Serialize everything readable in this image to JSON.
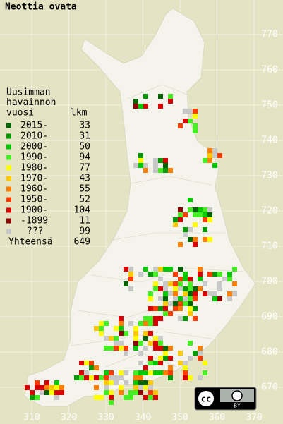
{
  "title": "Neottia ovata",
  "legend": {
    "heading": [
      "Uusimman",
      "havainnon",
      "vuosi"
    ],
    "count_heading": "lkm",
    "rows": [
      {
        "label": "2015-",
        "count": 33,
        "color": "#006400"
      },
      {
        "label": "2010-",
        "count": 31,
        "color": "#009a00"
      },
      {
        "label": "2000-",
        "count": 50,
        "color": "#00c800"
      },
      {
        "label": "1990-",
        "count": 94,
        "color": "#44ee22"
      },
      {
        "label": "1980-",
        "count": 77,
        "color": "#ffff00"
      },
      {
        "label": "1970-",
        "count": 43,
        "color": "#ffc800"
      },
      {
        "label": "1960-",
        "count": 55,
        "color": "#ff8000"
      },
      {
        "label": "1950-",
        "count": 52,
        "color": "#ff3c00"
      },
      {
        "label": "1900-",
        "count": 104,
        "color": "#d80000"
      },
      {
        "label": "-1899",
        "count": 11,
        "color": "#8c0000"
      },
      {
        "label": "???",
        "count": 99,
        "color": "#c8c8c8"
      }
    ],
    "total_label": "Yhteensä",
    "total": 649
  },
  "map": {
    "xticks": [
      310,
      320,
      330,
      340,
      350,
      360,
      370
    ],
    "yticks": [
      670,
      680,
      690,
      700,
      710,
      720,
      730,
      740,
      750,
      760,
      770
    ]
  },
  "license_badge": {
    "icon": "cc",
    "label": "BY"
  }
}
